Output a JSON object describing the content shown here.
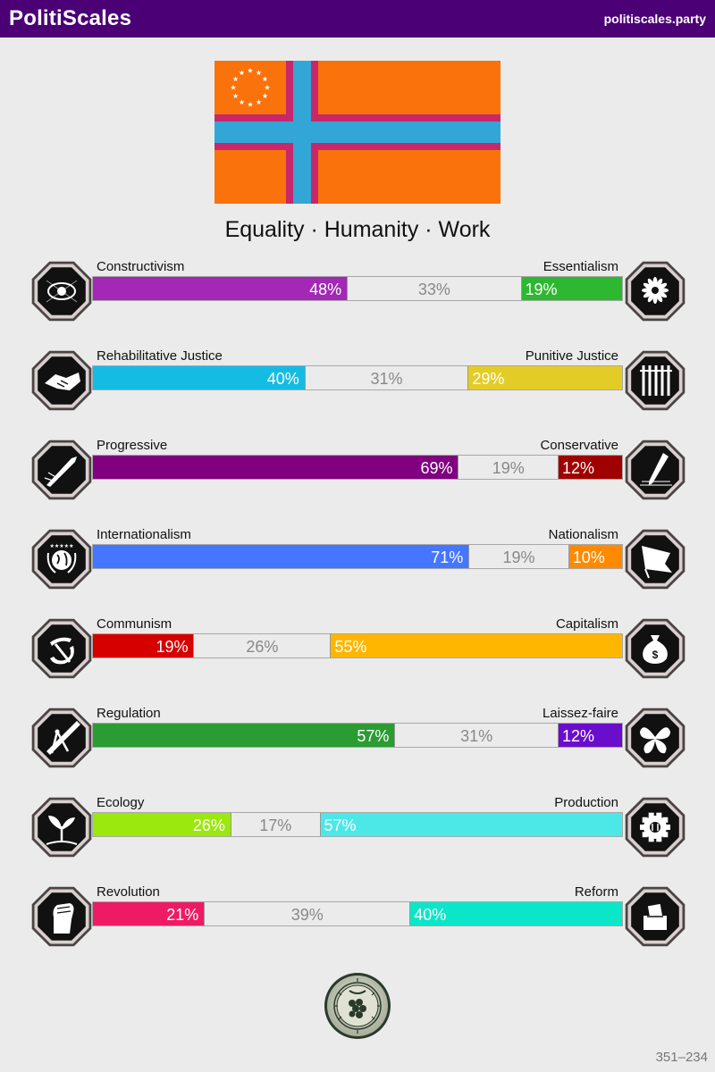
{
  "header": {
    "brand": "PolitiScales",
    "url": "politiscales.party"
  },
  "flag": {
    "background": "#f9720c",
    "cross_outer": "#c8286a",
    "cross_inner": "#32a6d6",
    "stars_color": "#ffffff",
    "star_count": 12
  },
  "motto": "Equality · Humanity · Work",
  "axes": [
    {
      "left_label": "Constructivism",
      "right_label": "Essentialism",
      "left": {
        "value": 48,
        "text": "48%",
        "color": "#a228b5"
      },
      "middle": {
        "value": 33,
        "text": "33%"
      },
      "right": {
        "value": 19,
        "text": "19%",
        "color": "#2eb831"
      },
      "left_icon": "eye-icon",
      "right_icon": "flower-icon"
    },
    {
      "left_label": "Rehabilitative Justice",
      "right_label": "Punitive Justice",
      "left": {
        "value": 40,
        "text": "40%",
        "color": "#14bce4"
      },
      "middle": {
        "value": 31,
        "text": "31%"
      },
      "right": {
        "value": 29,
        "text": "29%",
        "color": "#e4cc26"
      },
      "left_icon": "handshake-icon",
      "right_icon": "prison-bars-icon"
    },
    {
      "left_label": "Progressive",
      "right_label": "Conservative",
      "left": {
        "value": 69,
        "text": "69%",
        "color": "#800080"
      },
      "middle": {
        "value": 19,
        "text": "19%"
      },
      "right": {
        "value": 12,
        "text": "12%",
        "color": "#a00000"
      },
      "left_icon": "rocket-icon",
      "right_icon": "quill-icon"
    },
    {
      "left_label": "Internationalism",
      "right_label": "Nationalism",
      "left": {
        "value": 71,
        "text": "71%",
        "color": "#4476ff"
      },
      "middle": {
        "value": 19,
        "text": "19%"
      },
      "right": {
        "value": 10,
        "text": "10%",
        "color": "#ff8a00"
      },
      "left_icon": "globe-laurel-icon",
      "right_icon": "flag-icon"
    },
    {
      "left_label": "Communism",
      "right_label": "Capitalism",
      "left": {
        "value": 19,
        "text": "19%",
        "color": "#d60000"
      },
      "middle": {
        "value": 26,
        "text": "26%"
      },
      "right": {
        "value": 55,
        "text": "55%",
        "color": "#ffb600"
      },
      "left_icon": "hammer-sickle-icon",
      "right_icon": "money-bag-icon"
    },
    {
      "left_label": "Regulation",
      "right_label": "Laissez-faire",
      "left": {
        "value": 57,
        "text": "57%",
        "color": "#2a9c32"
      },
      "middle": {
        "value": 31,
        "text": "31%"
      },
      "right": {
        "value": 12,
        "text": "12%",
        "color": "#6a0ecc"
      },
      "left_icon": "ruler-compass-icon",
      "right_icon": "butterfly-icon"
    },
    {
      "left_label": "Ecology",
      "right_label": "Production",
      "left": {
        "value": 26,
        "text": "26%",
        "color": "#9be80e"
      },
      "middle": {
        "value": 17,
        "text": "17%"
      },
      "right": {
        "value": 57,
        "text": "57%",
        "color": "#4ce8e8"
      },
      "left_icon": "sprout-icon",
      "right_icon": "gear-icon"
    },
    {
      "left_label": "Revolution",
      "right_label": "Reform",
      "left": {
        "value": 21,
        "text": "21%",
        "color": "#ec1b64"
      },
      "middle": {
        "value": 39,
        "text": "39%"
      },
      "right": {
        "value": 40,
        "text": "40%",
        "color": "#0ce6c8"
      },
      "left_icon": "raised-fist-icon",
      "right_icon": "ballot-box-icon"
    }
  ],
  "seal": {
    "name": "seal-icon"
  },
  "footer": {
    "code": "351–234"
  }
}
